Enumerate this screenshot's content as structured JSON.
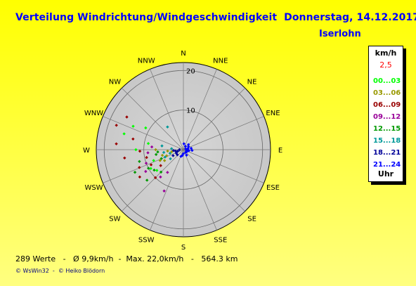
{
  "header": {
    "title": "Verteilung Windrichtung/Windgeschwindigkeit  Donnerstag, 14.12.2017",
    "station": "Iserlohn"
  },
  "legend": {
    "unit": "km/h",
    "scale": "2,5",
    "items": [
      {
        "label": "00...03",
        "color": "#00ff00"
      },
      {
        "label": "03...06",
        "color": "#999900"
      },
      {
        "label": "06...09",
        "color": "#990000"
      },
      {
        "label": "09...12",
        "color": "#990099"
      },
      {
        "label": "12...15",
        "color": "#009900"
      },
      {
        "label": "15...18",
        "color": "#009999"
      },
      {
        "label": "18...21",
        "color": "#000099"
      },
      {
        "label": "21...24",
        "color": "#0000ff"
      }
    ],
    "footer": "Uhr"
  },
  "stats": "289 Werte   -   Ø 9,9km/h  -  Max. 22,0km/h   -   564.3 km",
  "copyright": "© WsWin32  -  © Heiko Blödorn",
  "chart_data": {
    "type": "scatter",
    "subtype": "polar",
    "directions": [
      "N",
      "NNE",
      "NE",
      "ENE",
      "E",
      "ESE",
      "SE",
      "SSE",
      "S",
      "SSW",
      "SW",
      "WSW",
      "W",
      "WNW",
      "NW",
      "NNW"
    ],
    "radial_ticks": [
      10,
      20
    ],
    "radial_max": 22,
    "radial_unit": "km/h",
    "grid": true,
    "series": [
      {
        "name": "00...03",
        "color": "#00ff00",
        "points": [
          [
            285,
            15.5
          ],
          [
            295,
            14.0
          ],
          [
            280,
            9.0
          ],
          [
            250,
            8.0
          ],
          [
            240,
            9.5
          ],
          [
            270,
            12.0
          ],
          [
            300,
            11.0
          ],
          [
            232,
            8.5
          ]
        ]
      },
      {
        "name": "03...06",
        "color": "#999900",
        "points": [
          [
            255,
            5.5
          ],
          [
            265,
            4.0
          ],
          [
            245,
            6.5
          ],
          [
            270,
            7.0
          ],
          [
            260,
            3.0
          ],
          [
            250,
            4.5
          ],
          [
            240,
            5.5
          ]
        ]
      },
      {
        "name": "06...09",
        "color": "#990000",
        "points": [
          [
            290,
            18.0
          ],
          [
            300,
            16.5
          ],
          [
            275,
            17.0
          ],
          [
            262,
            15.0
          ],
          [
            248,
            12.0
          ],
          [
            238,
            13.0
          ],
          [
            225,
            10.0
          ],
          [
            268,
            11.0
          ],
          [
            282,
            13.0
          ],
          [
            258,
            9.5
          ],
          [
            245,
            9.0
          ],
          [
            235,
            7.0
          ]
        ]
      },
      {
        "name": "09...12",
        "color": "#990099",
        "points": [
          [
            215,
            7.0
          ],
          [
            205,
            11.5
          ],
          [
            220,
            9.0
          ],
          [
            265,
            9.0
          ],
          [
            250,
            10.0
          ],
          [
            275,
            8.0
          ],
          [
            240,
            11.0
          ]
        ]
      },
      {
        "name": "12...15",
        "color": "#009900",
        "points": [
          [
            230,
            12.0
          ],
          [
            245,
            13.5
          ],
          [
            255,
            11.5
          ],
          [
            260,
            7.0
          ],
          [
            235,
            9.0
          ],
          [
            248,
            6.0
          ],
          [
            265,
            6.5
          ],
          [
            225,
            8.0
          ],
          [
            242,
            10.0
          ]
        ]
      },
      {
        "name": "15...18",
        "color": "#009999",
        "points": [
          [
            255,
            3.5
          ],
          [
            275,
            3.0
          ],
          [
            262,
            5.0
          ],
          [
            248,
            5.0
          ],
          [
            235,
            4.0
          ],
          [
            280,
            5.5
          ],
          [
            325,
            7.0
          ]
        ]
      },
      {
        "name": "18...21",
        "color": "#000099",
        "points": [
          [
            260,
            2.0
          ],
          [
            255,
            1.5
          ],
          [
            270,
            1.0
          ],
          [
            245,
            2.0
          ],
          [
            230,
            2.0
          ],
          [
            265,
            2.5
          ],
          [
            240,
            3.0
          ]
        ]
      },
      {
        "name": "21...24",
        "color": "#0000ff",
        "points": [
          [
            75,
            1.2
          ],
          [
            90,
            1.0
          ],
          [
            110,
            0.8
          ],
          [
            60,
            1.5
          ],
          [
            45,
            1.8
          ],
          [
            120,
            1.0
          ],
          [
            140,
            0.9
          ],
          [
            100,
            1.4
          ],
          [
            30,
            1.0
          ],
          [
            5,
            1.5
          ],
          [
            80,
            2.0
          ],
          [
            95,
            2.2
          ],
          [
            150,
            1.6
          ],
          [
            70,
            0.6
          ],
          [
            190,
            1.5
          ],
          [
            200,
            1.8
          ],
          [
            180,
            1.0
          ]
        ]
      }
    ]
  }
}
